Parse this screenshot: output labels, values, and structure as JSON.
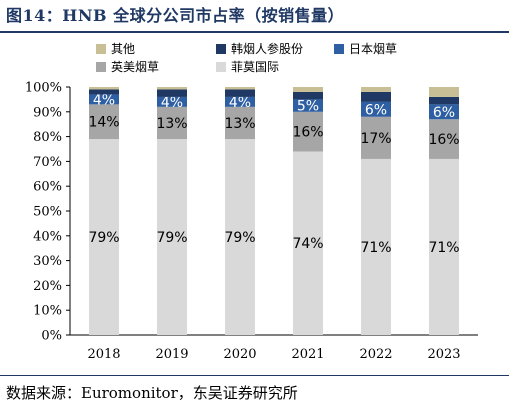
{
  "header": {
    "title": "图14：HNB 全球分公司市占率（按销售量）"
  },
  "footer": {
    "source": "数据来源：Euromonitor，东吴证券研究所"
  },
  "chart_data": {
    "type": "bar",
    "stacked": true,
    "percent": true,
    "categories": [
      "2018",
      "2019",
      "2020",
      "2021",
      "2022",
      "2023"
    ],
    "ylim": [
      0,
      100
    ],
    "yticks": [
      "0%",
      "10%",
      "20%",
      "30%",
      "40%",
      "50%",
      "60%",
      "70%",
      "80%",
      "90%",
      "100%"
    ],
    "grid": false,
    "legend_position": "top",
    "series": [
      {
        "name": "菲莫国际",
        "color": "#d9d9d9",
        "values": [
          79,
          79,
          79,
          74,
          71,
          71
        ],
        "labels": [
          "79%",
          "79%",
          "79%",
          "74%",
          "71%",
          "71%"
        ],
        "label_color": "#000000"
      },
      {
        "name": "英美烟草",
        "color": "#a6a6a6",
        "values": [
          14,
          13,
          13,
          16,
          17,
          16
        ],
        "labels": [
          "14%",
          "13%",
          "13%",
          "16%",
          "17%",
          "16%"
        ],
        "label_color": "#000000"
      },
      {
        "name": "日本烟草",
        "color": "#2e5fa3",
        "values": [
          4,
          4,
          4,
          5,
          6,
          6
        ],
        "labels": [
          "4%",
          "4%",
          "4%",
          "5%",
          "6%",
          "6%"
        ],
        "label_color": "#ffffff"
      },
      {
        "name": "韩烟人参股份",
        "color": "#1f3864",
        "values": [
          2,
          3,
          3,
          3,
          4,
          3
        ],
        "labels": [],
        "label_color": "#ffffff"
      },
      {
        "name": "其他",
        "color": "#c9bf96",
        "values": [
          1,
          1,
          1,
          2,
          2,
          4
        ],
        "labels": [],
        "label_color": "#000000"
      }
    ]
  }
}
